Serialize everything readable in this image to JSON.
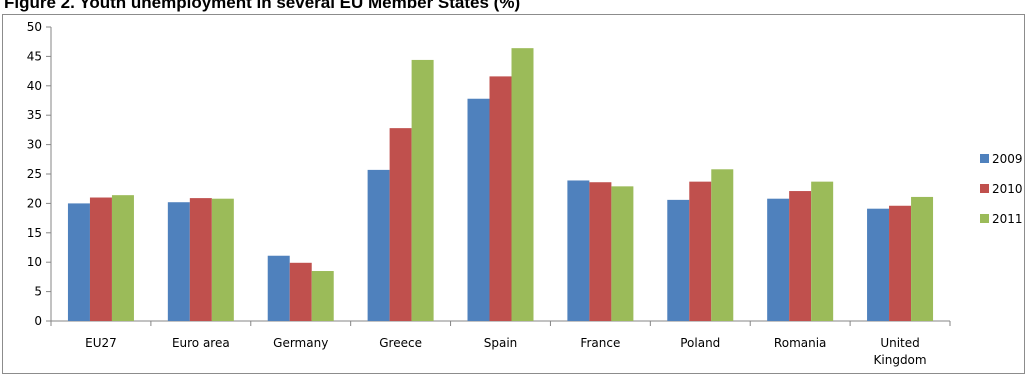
{
  "figure_title": "Figure 2. Youth unemployment in several EU Member States (%)",
  "chart_data": {
    "type": "bar",
    "title": "Figure 2. Youth unemployment in several EU Member States (%)",
    "categories": [
      "EU27",
      "Euro area",
      "Germany",
      "Greece",
      "Spain",
      "France",
      "Poland",
      "Romania",
      "United Kingdom"
    ],
    "category_lines": [
      [
        "EU27"
      ],
      [
        "Euro area"
      ],
      [
        "Germany"
      ],
      [
        "Greece"
      ],
      [
        "Spain"
      ],
      [
        "France"
      ],
      [
        "Poland"
      ],
      [
        "Romania"
      ],
      [
        "United",
        "Kingdom"
      ]
    ],
    "series": [
      {
        "name": "2009",
        "color": "#4f81bd",
        "values": [
          20.0,
          20.2,
          11.1,
          25.7,
          37.8,
          23.9,
          20.6,
          20.8,
          19.1
        ]
      },
      {
        "name": "2010",
        "color": "#c0504d",
        "values": [
          21.0,
          20.9,
          9.9,
          32.8,
          41.6,
          23.6,
          23.7,
          22.1,
          19.6
        ]
      },
      {
        "name": "2011",
        "color": "#9bbb59",
        "values": [
          21.4,
          20.8,
          8.5,
          44.4,
          46.4,
          22.9,
          25.8,
          23.7,
          21.1
        ]
      }
    ],
    "ylim": [
      0,
      50
    ],
    "ytick_step": 5,
    "xlabel": "",
    "ylabel": "",
    "grid": false,
    "legend_position": "right"
  }
}
